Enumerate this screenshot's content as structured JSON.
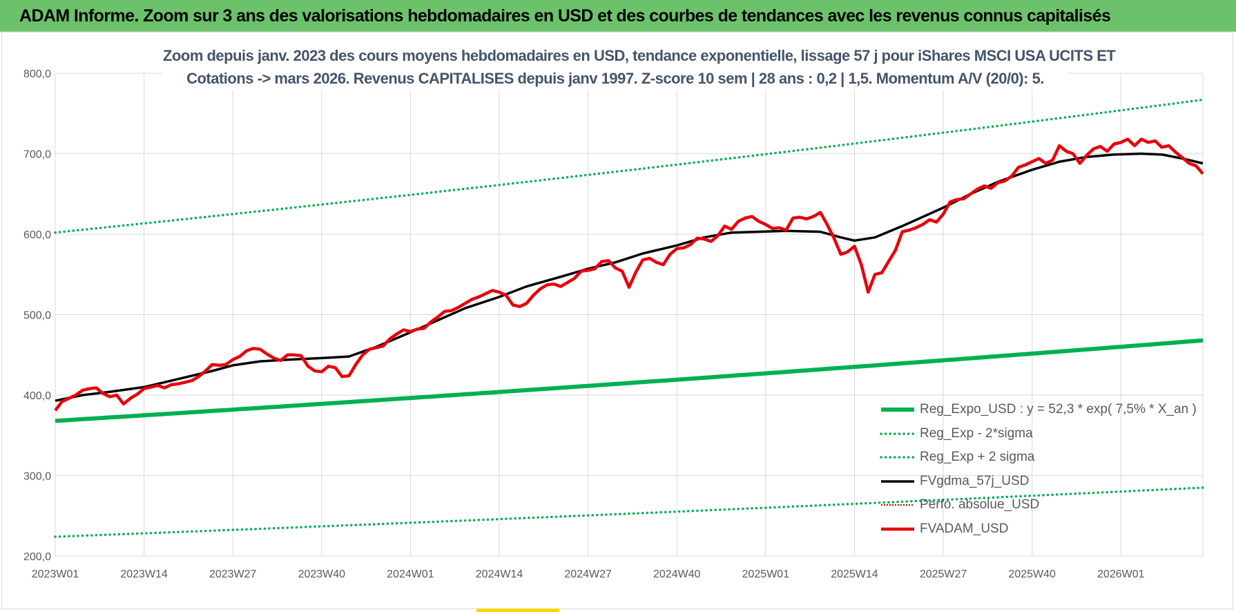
{
  "banner": {
    "title": "ADAM Informe. Zoom sur 3 ans des valorisations hebdomadaires en USD et des courbes de tendances avec les revenus connus capitalisés"
  },
  "chart_data": {
    "type": "line",
    "title_line1": "Zoom depuis janv. 2023 des cours moyens hebdomadaires en USD, tendance exponentielle, lissage 57 j pour iShares MSCI USA UCITS ET",
    "title_line2": "Cotations -> mars 2026. Revenus CAPITALISES depuis janv 1997.  Z-score 10 sem | 28 ans : 0,2 | 1,5.  Momentum A/V (20/0): 5.",
    "ylim": [
      200,
      800
    ],
    "yticks": [
      "200,0",
      "300,0",
      "400,0",
      "500,0",
      "600,0",
      "700,0",
      "800,0"
    ],
    "xticks": [
      {
        "label": "2023W01",
        "week": 0
      },
      {
        "label": "2023W14",
        "week": 13
      },
      {
        "label": "2023W27",
        "week": 26
      },
      {
        "label": "2023W40",
        "week": 39
      },
      {
        "label": "2024W01",
        "week": 52
      },
      {
        "label": "2024W14",
        "week": 65
      },
      {
        "label": "2024W27",
        "week": 78
      },
      {
        "label": "2024W40",
        "week": 91
      },
      {
        "label": "2025W01",
        "week": 104
      },
      {
        "label": "2025W14",
        "week": 117
      },
      {
        "label": "2025W27",
        "week": 130
      },
      {
        "label": "2025W40",
        "week": 143
      },
      {
        "label": "2026W01",
        "week": 156
      }
    ],
    "x_range_weeks": [
      0,
      168
    ],
    "grid": true,
    "legend_position": "bottom-right",
    "series": [
      {
        "name": "Reg_Expo_USD : y = 52,3 * exp( 7,5% *  X_an )",
        "color": "#00b050",
        "style": "solid-thick",
        "weeks": [
          0,
          168
        ],
        "values": [
          368,
          468
        ],
        "curve": "exp"
      },
      {
        "name": "Reg_Exp - 2*sigma",
        "color": "#00b050",
        "style": "dotted",
        "weeks": [
          0,
          168
        ],
        "values": [
          224,
          285
        ],
        "curve": "exp"
      },
      {
        "name": "Reg_Exp + 2 sigma",
        "color": "#00b050",
        "style": "dotted",
        "weeks": [
          0,
          168
        ],
        "values": [
          602,
          767
        ],
        "curve": "exp"
      },
      {
        "name": "FVgdma_57j_USD",
        "color": "#000000",
        "style": "solid",
        "weeks": [
          0,
          4,
          8,
          13,
          18,
          23,
          26,
          30,
          34,
          39,
          43,
          47,
          52,
          56,
          60,
          65,
          69,
          74,
          78,
          82,
          86,
          91,
          95,
          99,
          103,
          107,
          112,
          115,
          117,
          120,
          124,
          130,
          134,
          138,
          143,
          147,
          151,
          155,
          159,
          162,
          165,
          168
        ],
        "values": [
          393,
          400,
          404,
          410,
          420,
          430,
          437,
          442,
          444,
          446,
          448,
          460,
          478,
          493,
          508,
          522,
          535,
          547,
          557,
          565,
          576,
          586,
          596,
          602,
          603,
          604,
          603,
          596,
          592,
          596,
          610,
          633,
          650,
          665,
          680,
          690,
          696,
          699,
          700,
          699,
          694,
          688
        ]
      },
      {
        "name": "Perfo. absolue_USD",
        "color": "#c00000",
        "style": "dotted-thin",
        "weeks": [],
        "values": []
      },
      {
        "name": "FVADAM_USD",
        "color": "#e8000b",
        "style": "solid-thick",
        "weeks": [
          0,
          1,
          2,
          3,
          4,
          5,
          6,
          7,
          8,
          9,
          10,
          11,
          12,
          13,
          14,
          15,
          16,
          17,
          18,
          19,
          20,
          21,
          22,
          23,
          24,
          25,
          26,
          27,
          28,
          29,
          30,
          31,
          32,
          33,
          34,
          35,
          36,
          37,
          38,
          39,
          40,
          41,
          42,
          43,
          44,
          45,
          46,
          47,
          48,
          49,
          50,
          51,
          52,
          53,
          54,
          55,
          56,
          57,
          58,
          59,
          60,
          61,
          62,
          63,
          64,
          65,
          66,
          67,
          68,
          69,
          70,
          71,
          72,
          73,
          74,
          75,
          76,
          77,
          78,
          79,
          80,
          81,
          82,
          83,
          84,
          85,
          86,
          87,
          88,
          89,
          90,
          91,
          92,
          93,
          94,
          95,
          96,
          97,
          98,
          99,
          100,
          101,
          102,
          103,
          104,
          105,
          106,
          107,
          108,
          109,
          110,
          111,
          112,
          113,
          114,
          115,
          116,
          117,
          118,
          119,
          120,
          121,
          122,
          123,
          124,
          125,
          126,
          127,
          128,
          129,
          130,
          131,
          132,
          133,
          134,
          135,
          136,
          137,
          138,
          139,
          140,
          141,
          142,
          143,
          144,
          145,
          146,
          147,
          148,
          149,
          150,
          151,
          152,
          153,
          154,
          155,
          156,
          157,
          158,
          159,
          160,
          161,
          162,
          163,
          164,
          165,
          166,
          167,
          168
        ],
        "values": [
          381,
          392,
          396,
          400,
          406,
          408,
          409,
          402,
          398,
          400,
          389,
          396,
          401,
          408,
          410,
          412,
          409,
          413,
          414,
          416,
          418,
          423,
          430,
          438,
          437,
          438,
          444,
          448,
          455,
          458,
          457,
          451,
          446,
          443,
          450,
          450,
          449,
          436,
          430,
          429,
          436,
          434,
          423,
          424,
          438,
          450,
          457,
          459,
          461,
          470,
          476,
          481,
          479,
          482,
          483,
          491,
          497,
          504,
          505,
          509,
          514,
          519,
          522,
          526,
          530,
          528,
          524,
          512,
          510,
          514,
          524,
          532,
          537,
          538,
          535,
          540,
          545,
          554,
          555,
          557,
          566,
          567,
          558,
          554,
          534,
          553,
          568,
          570,
          565,
          562,
          575,
          582,
          583,
          587,
          595,
          594,
          591,
          598,
          610,
          606,
          616,
          620,
          622,
          616,
          612,
          607,
          608,
          605,
          620,
          621,
          619,
          622,
          627,
          612,
          595,
          575,
          578,
          585,
          562,
          528,
          550,
          552,
          566,
          580,
          603,
          605,
          608,
          612,
          618,
          615,
          625,
          640,
          643,
          644,
          650,
          656,
          660,
          657,
          664,
          666,
          672,
          683,
          686,
          690,
          694,
          688,
          692,
          710,
          703,
          700,
          688,
          698,
          706,
          709,
          703,
          712,
          714,
          718,
          710,
          718,
          714,
          716,
          708,
          710,
          702,
          695,
          688,
          685,
          675
        ]
      }
    ]
  }
}
